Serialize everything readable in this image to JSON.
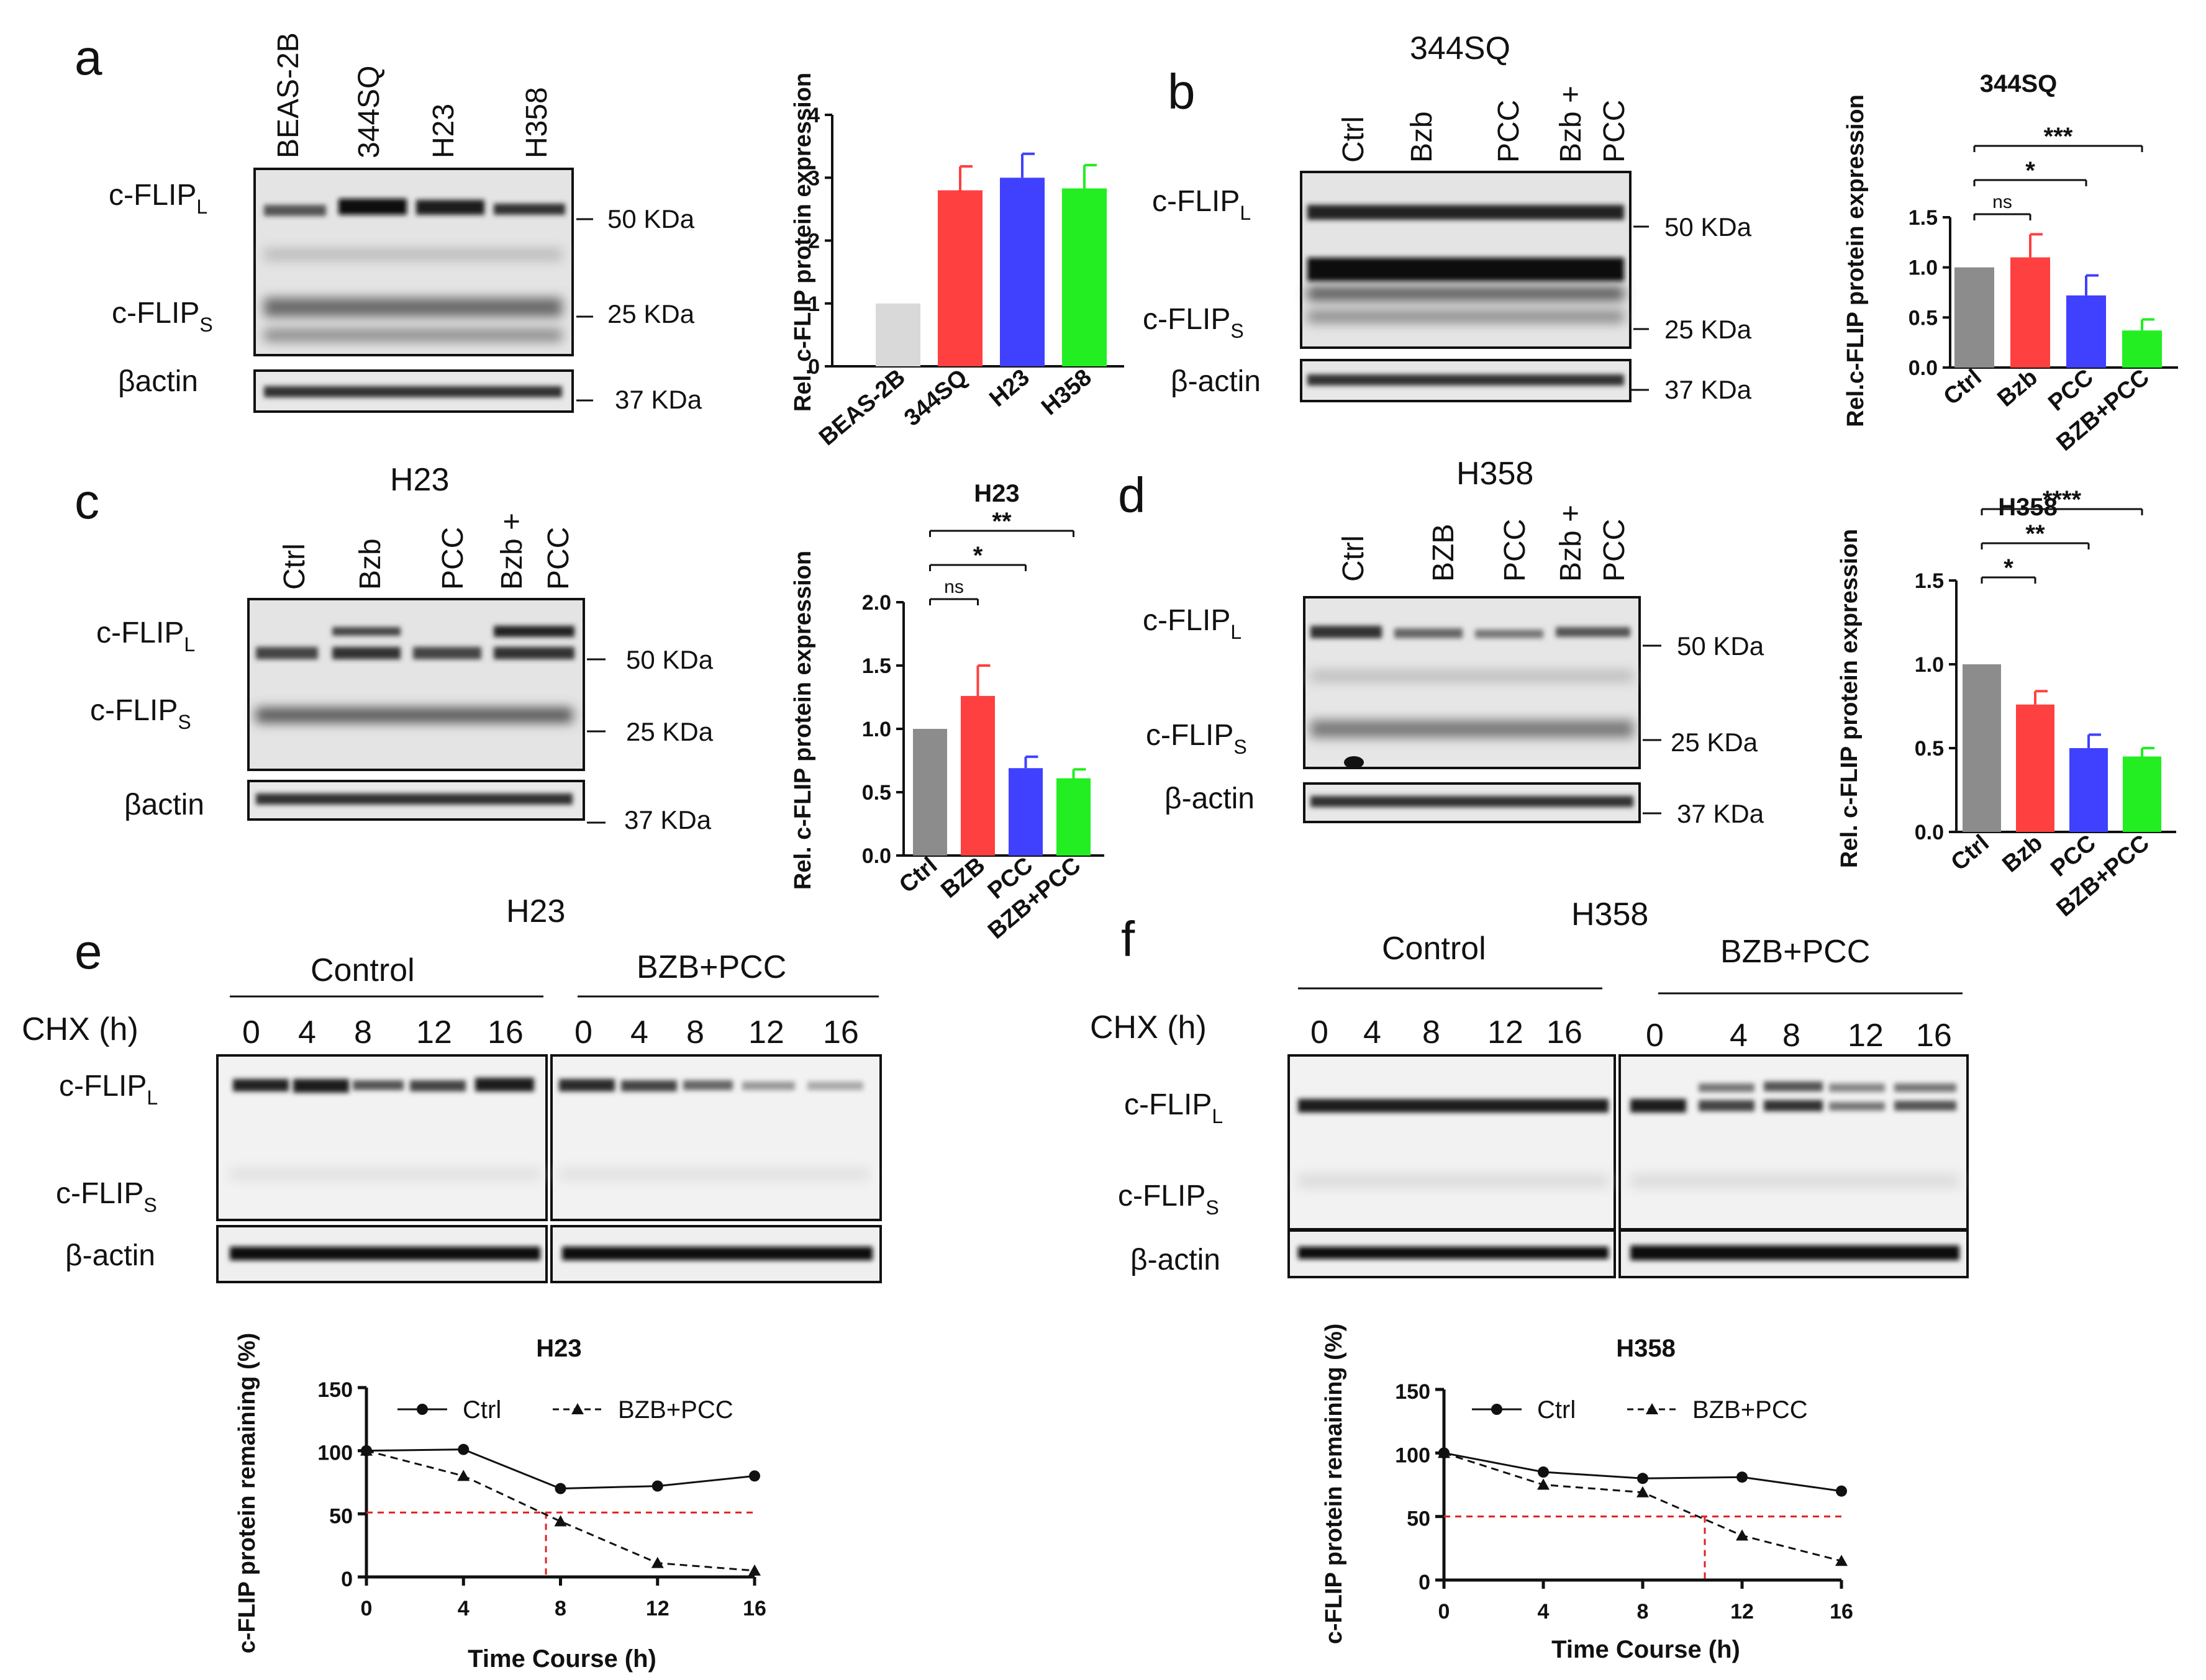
{
  "panels": {
    "a": {
      "letter": "a",
      "lanes": [
        "BEAS-2B",
        "344SQ",
        "H23",
        "H358"
      ],
      "band_flip_l": "c-FLIP",
      "band_flip_s": "c-FLIP",
      "sub_l": "L",
      "sub_s": "S",
      "actin": "βactin",
      "mw": [
        "50 KDa",
        "25 KDa",
        "37 KDa"
      ]
    },
    "b": {
      "letter": "b",
      "title": "344SQ",
      "lanes": [
        "Ctrl",
        "Bzb",
        "PCC",
        "Bzb +",
        "PCC"
      ],
      "band_flip_l": "c-FLIP",
      "band_flip_s": "c-FLIP",
      "sub_l": "L",
      "sub_s": "S",
      "actin": "β-actin",
      "mw": [
        "50 KDa",
        "25 KDa",
        "37 KDa"
      ]
    },
    "c": {
      "letter": "c",
      "title": "H23",
      "lanes": [
        "Ctrl",
        "Bzb",
        "PCC",
        "Bzb +",
        "PCC"
      ],
      "band_flip_l": "c-FLIP",
      "band_flip_s": "c-FLIP",
      "sub_l": "L",
      "sub_s": "S",
      "actin": "βactin",
      "mw": [
        "50 KDa",
        "25 KDa",
        "37 KDa"
      ]
    },
    "d": {
      "letter": "d",
      "title": "H358",
      "lanes": [
        "Ctrl",
        "BZB",
        "PCC",
        "Bzb +",
        "PCC"
      ],
      "band_flip_l": "c-FLIP",
      "band_flip_s": "c-FLIP",
      "sub_l": "L",
      "sub_s": "S",
      "actin": "β-actin",
      "mw": [
        "50 KDa",
        "25 KDa",
        "37 KDa"
      ]
    },
    "e": {
      "letter": "e",
      "title": "H23",
      "group1": "Control",
      "group2": "BZB+PCC",
      "chx": "CHX (h)",
      "times": [
        "0",
        "4",
        "8",
        "12",
        "16"
      ],
      "band_flip_l": "c-FLIP",
      "band_flip_s": "c-FLIP",
      "sub_l": "L",
      "sub_s": "S",
      "actin": "β-actin"
    },
    "f": {
      "letter": "f",
      "title": "H358",
      "group1": "Control",
      "group2": "BZB+PCC",
      "chx": "CHX (h)",
      "times": [
        "0",
        "4",
        "8",
        "12",
        "16"
      ],
      "band_flip_l": "c-FLIP",
      "band_flip_s": "c-FLIP",
      "sub_l": "L",
      "sub_s": "S",
      "actin": "β-actin"
    }
  },
  "chart_data": [
    {
      "id": "a",
      "type": "bar",
      "title": "",
      "ylabel": "Rel. c-FLIP protein expression",
      "categories": [
        "BEAS-2B",
        "344SQ",
        "H23",
        "H358"
      ],
      "values": [
        1.0,
        2.8,
        3.0,
        2.83
      ],
      "errors": [
        0,
        0.38,
        0.38,
        0.37
      ],
      "colors": [
        "#d9d9d9",
        "#ff4040",
        "#4040ff",
        "#22ee22"
      ],
      "ylim": [
        0,
        4
      ],
      "yticks": [
        "0",
        "1",
        "2",
        "3",
        "4"
      ],
      "significance": []
    },
    {
      "id": "b",
      "type": "bar",
      "title": "344SQ",
      "ylabel": "Rel.c-FLIP protein expression",
      "categories": [
        "Ctrl",
        "Bzb",
        "PCC",
        "BZB+PCC"
      ],
      "values": [
        1.0,
        1.1,
        0.72,
        0.37
      ],
      "errors": [
        0,
        0.23,
        0.2,
        0.11
      ],
      "colors": [
        "#8c8c8c",
        "#ff4040",
        "#4040ff",
        "#22ee22"
      ],
      "ylim": [
        0,
        1.5
      ],
      "yticks": [
        "0.0",
        "0.5",
        "1.0",
        "1.5"
      ],
      "significance": [
        {
          "label": "ns",
          "from": 0,
          "to": 1
        },
        {
          "label": "*",
          "from": 0,
          "to": 2
        },
        {
          "label": "***",
          "from": 0,
          "to": 3
        }
      ]
    },
    {
      "id": "c",
      "type": "bar",
      "title": "H23",
      "ylabel": "Rel. c-FLIP protein expression",
      "categories": [
        "Ctrl",
        "BZB",
        "PCC",
        "BZB+PCC"
      ],
      "values": [
        1.0,
        1.26,
        0.69,
        0.61
      ],
      "errors": [
        0,
        0.24,
        0.09,
        0.07
      ],
      "colors": [
        "#8c8c8c",
        "#ff4040",
        "#4040ff",
        "#22ee22"
      ],
      "ylim": [
        0,
        2.0
      ],
      "yticks": [
        "0.0",
        "0.5",
        "1.0",
        "1.5",
        "2.0"
      ],
      "significance": [
        {
          "label": "ns",
          "from": 0,
          "to": 1
        },
        {
          "label": "*",
          "from": 0,
          "to": 2
        },
        {
          "label": "**",
          "from": 0,
          "to": 3
        }
      ]
    },
    {
      "id": "d",
      "type": "bar",
      "title": "H358",
      "ylabel": "Rel. c-FLIP protein expression",
      "categories": [
        "Ctrl",
        "Bzb",
        "PCC",
        "BZB+PCC"
      ],
      "values": [
        1.0,
        0.76,
        0.5,
        0.45
      ],
      "errors": [
        0,
        0.08,
        0.08,
        0.05
      ],
      "colors": [
        "#8c8c8c",
        "#ff4040",
        "#4040ff",
        "#22ee22"
      ],
      "ylim": [
        0,
        1.5
      ],
      "yticks": [
        "0.0",
        "0.5",
        "1.0",
        "1.5"
      ],
      "significance": [
        {
          "label": "*",
          "from": 0,
          "to": 1
        },
        {
          "label": "**",
          "from": 0,
          "to": 2
        },
        {
          "label": "****",
          "from": 0,
          "to": 3
        }
      ]
    },
    {
      "id": "e",
      "type": "line",
      "title": "H23",
      "xlabel": "Time Course (h)",
      "ylabel": "c-FLIP protein remaining (%)",
      "x": [
        0,
        4,
        8,
        12,
        16
      ],
      "xlim": [
        0,
        16
      ],
      "ylim": [
        0,
        150
      ],
      "xticks": [
        "0",
        "4",
        "8",
        "12",
        "16"
      ],
      "yticks": [
        "0",
        "50",
        "100",
        "150"
      ],
      "series": [
        {
          "name": "Ctrl",
          "values": [
            100,
            101,
            70,
            72,
            80
          ],
          "marker": "circle",
          "dash": false
        },
        {
          "name": "BZB+PCC",
          "values": [
            100,
            80,
            44,
            11,
            5
          ],
          "marker": "triangle",
          "dash": true
        }
      ],
      "half_life": {
        "y": 51,
        "x": 7.4
      }
    },
    {
      "id": "f",
      "type": "line",
      "title": "H358",
      "xlabel": "Time Course (h)",
      "ylabel": "c-FLIP protein remaining (%)",
      "x": [
        0,
        4,
        8,
        12,
        16
      ],
      "xlim": [
        0,
        16
      ],
      "ylim": [
        0,
        150
      ],
      "xticks": [
        "0",
        "4",
        "8",
        "12",
        "16"
      ],
      "yticks": [
        "0",
        "50",
        "100",
        "150"
      ],
      "series": [
        {
          "name": "Ctrl",
          "values": [
            100,
            85,
            80,
            81,
            70
          ],
          "marker": "circle",
          "dash": false
        },
        {
          "name": "BZB+PCC",
          "values": [
            100,
            75,
            69,
            35,
            15
          ],
          "marker": "triangle",
          "dash": true
        }
      ],
      "half_life": {
        "y": 50,
        "x": 10.5
      }
    }
  ]
}
